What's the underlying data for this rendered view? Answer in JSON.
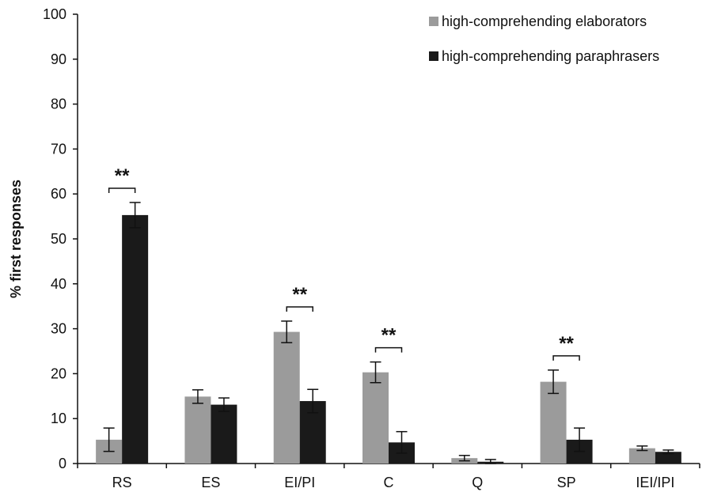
{
  "chart_data": {
    "type": "bar",
    "ylabel": "% first responses",
    "xlabel": "",
    "ylim": [
      0,
      100
    ],
    "yticks": [
      0,
      10,
      20,
      30,
      40,
      50,
      60,
      70,
      80,
      90,
      100
    ],
    "categories": [
      "RS",
      "ES",
      "EI/PI",
      "C",
      "Q",
      "SP",
      "IEI/IPI"
    ],
    "series": [
      {
        "name": "high-comprehending elaborators",
        "color": "#9b9b9b",
        "values": [
          5.3,
          14.9,
          29.3,
          20.3,
          1.2,
          18.2,
          3.4
        ],
        "errors": [
          2.6,
          1.5,
          2.4,
          2.3,
          0.6,
          2.6,
          0.5
        ]
      },
      {
        "name": "high-comprehending paraphrasers",
        "color": "#1a1a1a",
        "values": [
          55.3,
          13.1,
          13.9,
          4.7,
          0.4,
          5.3,
          2.6
        ],
        "errors": [
          2.8,
          1.5,
          2.6,
          2.4,
          0.5,
          2.6,
          0.4
        ]
      }
    ],
    "significance": [
      {
        "category": "RS",
        "label": "**"
      },
      {
        "category": "EI/PI",
        "label": "**"
      },
      {
        "category": "C",
        "label": "**"
      },
      {
        "category": "SP",
        "label": "**"
      }
    ],
    "legend_position": "top-right",
    "grid": false
  }
}
